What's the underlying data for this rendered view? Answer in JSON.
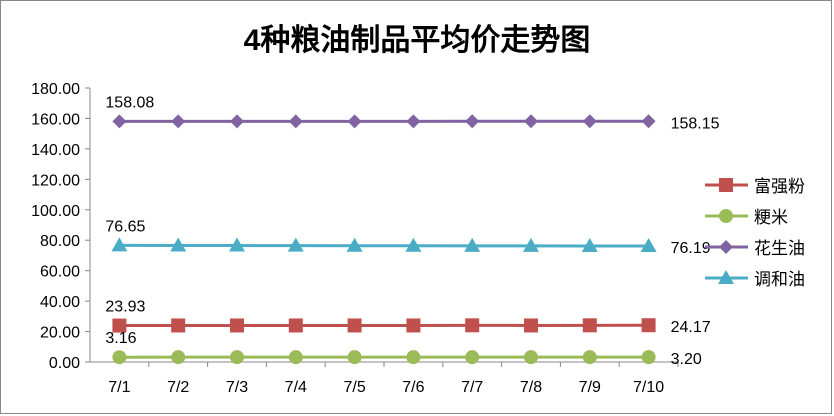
{
  "chart_data": {
    "type": "line",
    "title": "4种粮油制品平均价走势图",
    "xlabel": "",
    "ylabel": "",
    "categories": [
      "7/1",
      "7/2",
      "7/3",
      "7/4",
      "7/5",
      "7/6",
      "7/7",
      "7/8",
      "7/9",
      "7/10"
    ],
    "ylim": [
      0,
      180
    ],
    "yticks": [
      "0.00",
      "20.00",
      "40.00",
      "60.00",
      "80.00",
      "100.00",
      "120.00",
      "140.00",
      "160.00",
      "180.00"
    ],
    "grid": false,
    "legend": "right",
    "series": [
      {
        "name": "富强粉",
        "color": "#c0504d",
        "marker": "square",
        "values": [
          23.93,
          24.0,
          24.0,
          24.0,
          24.0,
          24.0,
          24.1,
          24.0,
          24.1,
          24.17
        ],
        "first_label": "23.93",
        "last_label": "24.17"
      },
      {
        "name": "粳米",
        "color": "#9bbb59",
        "marker": "circle",
        "values": [
          3.16,
          3.17,
          3.17,
          3.18,
          3.18,
          3.18,
          3.19,
          3.19,
          3.2,
          3.2
        ],
        "first_label": "3.16",
        "last_label": "3.20"
      },
      {
        "name": "花生油",
        "color": "#8064a2",
        "marker": "diamond",
        "values": [
          158.08,
          158.1,
          158.1,
          158.1,
          158.1,
          158.1,
          158.12,
          158.12,
          158.14,
          158.15
        ],
        "first_label": "158.08",
        "last_label": "158.15"
      },
      {
        "name": "调和油",
        "color": "#4bacc6",
        "marker": "triangle",
        "values": [
          76.65,
          76.5,
          76.5,
          76.45,
          76.4,
          76.4,
          76.3,
          76.25,
          76.2,
          76.19
        ],
        "first_label": "76.65",
        "last_label": "76.19"
      }
    ]
  }
}
